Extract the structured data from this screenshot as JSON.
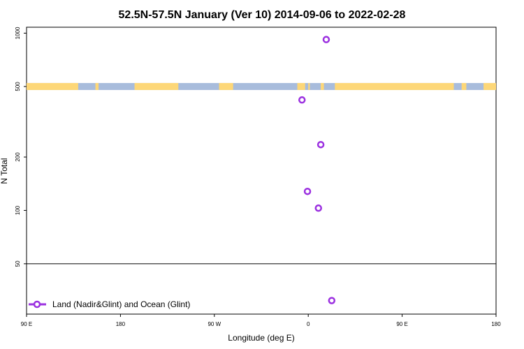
{
  "chart_data": {
    "type": "scatter",
    "title": "52.5N-57.5N January (Ver 10)   2014-09-06 to 2022-02-28",
    "xlabel": "Longitude (deg E)",
    "ylabel": "N Total",
    "x_axis": {
      "range_deg_east": [
        90,
        390
      ],
      "ticks": [
        {
          "value": 90,
          "label": "90 E"
        },
        {
          "value": 150,
          "label": "180"
        },
        {
          "value": 210,
          "label": "90 W"
        },
        {
          "value": 270,
          "label": "0"
        },
        {
          "value": 330,
          "label": "90 E"
        },
        {
          "value": 390,
          "label": "180"
        }
      ]
    },
    "y_axis": {
      "scale": "log",
      "range": [
        26,
        1080
      ],
      "ticks": [
        50,
        100,
        200,
        500,
        1000
      ]
    },
    "reference_line_y": 50,
    "map_band": {
      "description": "land/ocean strip at the 52.5N-57.5N latitude band",
      "y_value": 500,
      "ocean_color": "#a8bcdc",
      "land_color": "#fdd778"
    },
    "series": [
      {
        "name": "Land (Nadir&Glint) and Ocean (Glint)",
        "color": "#9b30e0",
        "marker": "open-circle",
        "points": [
          {
            "x": 281.5,
            "y": 920
          },
          {
            "x": 266,
            "y": 420
          },
          {
            "x": 278,
            "y": 235
          },
          {
            "x": 269.5,
            "y": 128
          },
          {
            "x": 276.5,
            "y": 103
          },
          {
            "x": 285,
            "y": 31
          }
        ]
      }
    ],
    "legend": {
      "position": "bottom-left"
    }
  }
}
